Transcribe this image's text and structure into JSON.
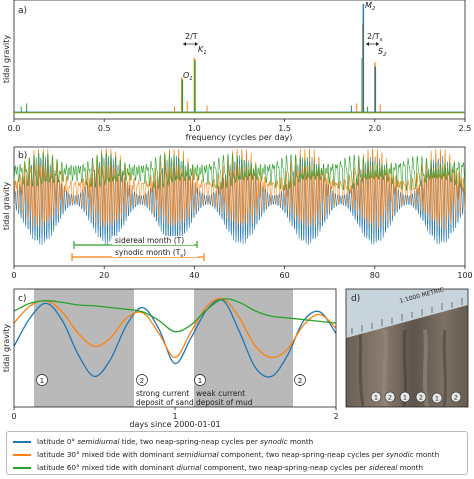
{
  "panels": {
    "a": {
      "label": "a)",
      "ylabel": "tidal gravity",
      "xlabel": "frequency (cycles per day)",
      "xticks": [
        "0.0",
        "0.5",
        "1.0",
        "1.5",
        "2.0",
        "2.5"
      ],
      "annotations": {
        "O1_main": "O",
        "O1_sub": "1",
        "K1_main": "K",
        "K1_sub": "1",
        "M2_main": "M",
        "M2_sub": "2",
        "S2_main": "S",
        "S2_sub": "2",
        "double_T_main": "2/T",
        "double_Ts_main": "2/T",
        "double_Ts_sub": "s"
      }
    },
    "b": {
      "label": "b)",
      "ylabel": "tidal gravity",
      "xticks": [
        "0",
        "20",
        "40",
        "60",
        "80",
        "100"
      ],
      "sidereal_label": "sidereal month (T)",
      "synodic_label": "synodic month (T",
      "synodic_sub": "s",
      "synodic_close": ")"
    },
    "c": {
      "label": "c)",
      "ylabel": "tidal gravity",
      "xlabel": "days since 2000-01-01",
      "xticks": [
        "0",
        "1",
        "2"
      ],
      "circle1": "1",
      "circle2": "2",
      "strong_line1": "strong current",
      "strong_line2": "deposit of sand",
      "weak_line1": "weak current",
      "weak_line2": "deposit of mud"
    },
    "d": {
      "label": "d)",
      "ruler_text": "1:1000 METRIC",
      "circles": [
        "1",
        "2",
        "1",
        "2",
        "1",
        "2"
      ]
    }
  },
  "legend": {
    "items": [
      {
        "color": "#1f77b4",
        "pre": "latitude 0°  ",
        "em1": "semidiurnal",
        "mid": " tide, two neap-spring-neap cycles per ",
        "em2": "synodic",
        "post": " month"
      },
      {
        "color": "#ff7f0e",
        "pre": "latitude 30° mixed tide with dominant ",
        "em1": "semidiurnal",
        "mid": " component, two neap-spring-neap cycles per ",
        "em2": "synodic",
        "post": " month"
      },
      {
        "color": "#2ca02c",
        "pre": "latitude 60° mixed tide with dominant ",
        "em1": "diurnal",
        "mid": " component, two neap-spring-neap cycles per ",
        "em2": "sidereal",
        "post": " month"
      }
    ]
  },
  "chart_data": [
    {
      "type": "line",
      "panel": "a",
      "xlabel": "frequency (cycles per day)",
      "ylabel": "tidal gravity",
      "xlim": [
        0,
        2.5
      ],
      "peaks": [
        {
          "name": "O1",
          "x": 0.93,
          "y": 0.32
        },
        {
          "name": "K1",
          "x": 1.0,
          "y": 0.5
        },
        {
          "name": "M2",
          "x": 1.93,
          "y": 1.0
        },
        {
          "name": "S2",
          "x": 2.0,
          "y": 0.46
        }
      ],
      "series": [
        {
          "color": "#1f77b4"
        },
        {
          "color": "#ff7f0e"
        },
        {
          "color": "#2ca02c"
        }
      ]
    },
    {
      "type": "line",
      "panel": "b",
      "ylabel": "tidal gravity",
      "xlim": [
        0,
        100
      ],
      "sidereal_month_days": [
        13.7,
        41.0
      ],
      "synodic_month_days": [
        13.0,
        42.5
      ],
      "series": [
        {
          "color": "#1f77b4"
        },
        {
          "color": "#ff7f0e"
        },
        {
          "color": "#2ca02c"
        }
      ]
    },
    {
      "type": "line",
      "panel": "c",
      "xlabel": "days since 2000-01-01",
      "ylabel": "tidal gravity",
      "xlim": [
        0,
        2
      ],
      "shaded_intervals": [
        [
          0.1,
          0.72
        ],
        [
          1.1,
          1.72
        ]
      ],
      "series": [
        {
          "color": "#1f77b4",
          "x": [
            0,
            0.1,
            0.2,
            0.3,
            0.4,
            0.5,
            0.6,
            0.7,
            0.8,
            0.9,
            1.0,
            1.1,
            1.2,
            1.3,
            1.4,
            1.5,
            1.6,
            1.7,
            1.8,
            1.9,
            2.0
          ],
          "y": [
            0.45,
            0.78,
            0.95,
            0.75,
            0.35,
            0.1,
            0.3,
            0.7,
            0.9,
            0.65,
            0.25,
            0.55,
            0.88,
            0.98,
            0.62,
            0.2,
            0.1,
            0.35,
            0.75,
            0.85,
            0.6
          ]
        },
        {
          "color": "#ff7f0e",
          "x": [
            0,
            0.1,
            0.2,
            0.3,
            0.4,
            0.5,
            0.6,
            0.7,
            0.8,
            0.9,
            1.0,
            1.1,
            1.2,
            1.3,
            1.4,
            1.5,
            1.6,
            1.7,
            1.8,
            1.9,
            2.0
          ],
          "y": [
            0.72,
            0.92,
            0.98,
            0.85,
            0.6,
            0.45,
            0.55,
            0.78,
            0.84,
            0.6,
            0.32,
            0.62,
            0.92,
            1.0,
            0.78,
            0.45,
            0.32,
            0.42,
            0.7,
            0.82,
            0.66
          ]
        },
        {
          "color": "#2ca02c",
          "x": [
            0,
            0.1,
            0.2,
            0.3,
            0.4,
            0.5,
            0.6,
            0.7,
            0.8,
            0.9,
            1.0,
            1.1,
            1.2,
            1.3,
            1.4,
            1.5,
            1.6,
            1.7,
            1.8,
            1.9,
            2.0
          ],
          "y": [
            0.86,
            0.95,
            0.98,
            0.96,
            0.93,
            0.92,
            0.9,
            0.88,
            0.85,
            0.75,
            0.62,
            0.7,
            0.88,
            1.0,
            0.96,
            0.86,
            0.8,
            0.78,
            0.76,
            0.74,
            0.72
          ]
        }
      ]
    }
  ]
}
